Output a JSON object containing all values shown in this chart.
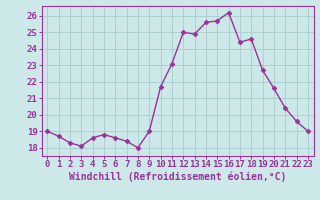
{
  "x": [
    0,
    1,
    2,
    3,
    4,
    5,
    6,
    7,
    8,
    9,
    10,
    11,
    12,
    13,
    14,
    15,
    16,
    17,
    18,
    19,
    20,
    21,
    22,
    23
  ],
  "y": [
    19.0,
    18.7,
    18.3,
    18.1,
    18.6,
    18.8,
    18.6,
    18.4,
    18.0,
    19.0,
    21.7,
    23.1,
    25.0,
    24.9,
    25.6,
    25.7,
    26.2,
    24.4,
    24.6,
    22.7,
    21.6,
    20.4,
    19.6,
    19.0
  ],
  "line_color": "#993399",
  "marker": "D",
  "marker_size": 2.5,
  "bg_color": "#cce8e8",
  "grid_color": "#aacccc",
  "spine_color": "#993399",
  "tick_color": "#993399",
  "label_color": "#993399",
  "xlabel": "Windchill (Refroidissement éolien,°C)",
  "ylim": [
    17.5,
    26.6
  ],
  "xlim": [
    -0.5,
    23.5
  ],
  "yticks": [
    18,
    19,
    20,
    21,
    22,
    23,
    24,
    25,
    26
  ],
  "xticks": [
    0,
    1,
    2,
    3,
    4,
    5,
    6,
    7,
    8,
    9,
    10,
    11,
    12,
    13,
    14,
    15,
    16,
    17,
    18,
    19,
    20,
    21,
    22,
    23
  ],
  "tick_font_size": 6.5,
  "label_font_size": 7.0,
  "linewidth": 1.0
}
